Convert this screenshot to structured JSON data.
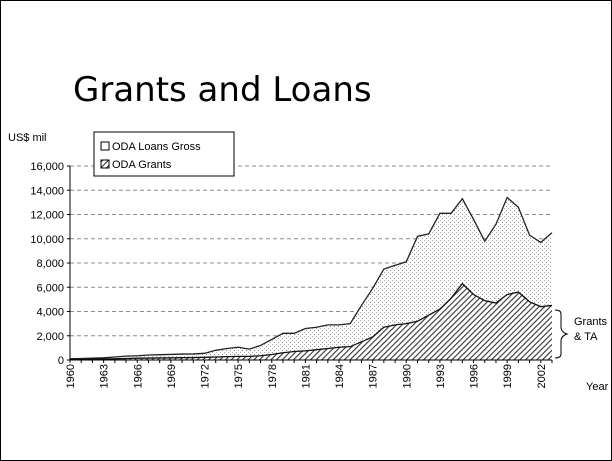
{
  "slide": {
    "title": "Grants and Loans"
  },
  "chart_data": {
    "type": "area",
    "ylabel": "US$ mil",
    "xlabel": "Year",
    "ylim": [
      0,
      16000
    ],
    "yticks": [
      0,
      2000,
      4000,
      6000,
      8000,
      10000,
      12000,
      14000,
      16000
    ],
    "ytick_labels": [
      "0",
      "2,000",
      "4,000",
      "6,000",
      "8,000",
      "10,000",
      "12,000",
      "14,000",
      "16,000"
    ],
    "xtick_labels": [
      "1960",
      "1963",
      "1966",
      "1969",
      "1972",
      "1975",
      "1978",
      "1981",
      "1984",
      "1987",
      "1990",
      "1993",
      "1996",
      "1999",
      "2002"
    ],
    "grid": "horizontal dashed",
    "stacked": true,
    "legend": {
      "placement": "top-left",
      "entries": [
        "ODA Loans Gross",
        "ODA Grants"
      ]
    },
    "annotation": {
      "lines": [
        "Grants",
        "& TA"
      ]
    },
    "x": [
      1960,
      1961,
      1962,
      1963,
      1964,
      1965,
      1966,
      1967,
      1968,
      1969,
      1970,
      1971,
      1972,
      1973,
      1974,
      1975,
      1976,
      1977,
      1978,
      1979,
      1980,
      1981,
      1982,
      1983,
      1984,
      1985,
      1986,
      1987,
      1988,
      1989,
      1990,
      1991,
      1992,
      1993,
      1994,
      1995,
      1996,
      1997,
      1998,
      1999,
      2000,
      2001,
      2002,
      2003
    ],
    "series": [
      {
        "name": "ODA Grants",
        "fill": "hatch",
        "values": [
          50,
          60,
          70,
          80,
          100,
          120,
          150,
          160,
          170,
          180,
          190,
          200,
          220,
          250,
          280,
          300,
          300,
          350,
          450,
          600,
          700,
          750,
          850,
          950,
          1050,
          1100,
          1500,
          1900,
          2700,
          2900,
          3000,
          3200,
          3700,
          4200,
          5100,
          6300,
          5400,
          4900,
          4700,
          5400,
          5600,
          4800,
          4400,
          4500
        ]
      },
      {
        "name": "ODA Loans Gross",
        "fill": "dots",
        "values": [
          50,
          60,
          80,
          100,
          150,
          200,
          200,
          250,
          270,
          280,
          300,
          300,
          330,
          550,
          670,
          750,
          600,
          850,
          1250,
          1600,
          1500,
          1850,
          1850,
          1950,
          1850,
          1900,
          3000,
          4000,
          4800,
          4900,
          5100,
          7000,
          6700,
          7900,
          7000,
          7000,
          6200,
          4900,
          6500,
          8000,
          7000,
          5500,
          5300,
          6000
        ]
      }
    ]
  }
}
